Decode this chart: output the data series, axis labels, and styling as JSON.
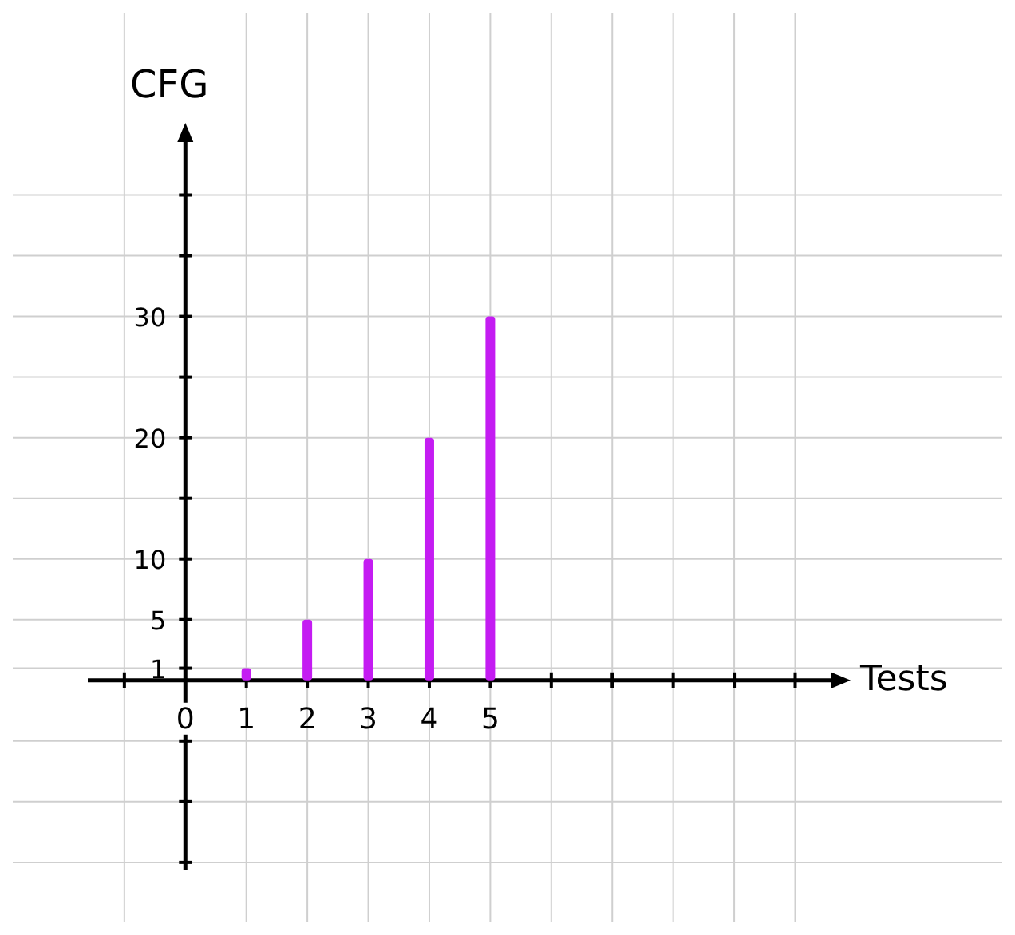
{
  "chart_data": {
    "type": "bar",
    "xlabel": "Tests",
    "ylabel": "CFG",
    "x": [
      1,
      2,
      3,
      4,
      5
    ],
    "values": [
      1,
      5,
      10,
      20,
      30
    ],
    "color": "#c41cf2",
    "xlim": [
      -1.6,
      10.7
    ],
    "ylim": [
      -15.6,
      44.9
    ],
    "xticks": [
      {
        "value": -1,
        "label": null
      },
      {
        "value": 0,
        "label": "0"
      },
      1,
      2,
      3,
      4,
      5,
      {
        "value": 6,
        "label": null
      },
      {
        "value": 7,
        "label": null
      },
      {
        "value": 8,
        "label": null
      },
      {
        "value": 9,
        "label": null
      },
      {
        "value": 10,
        "label": null
      }
    ],
    "yticks": [
      {
        "value": -15,
        "label": null
      },
      {
        "value": -10,
        "label": null
      },
      {
        "value": -5,
        "label": null
      },
      1,
      5,
      10,
      {
        "value": 15,
        "label": null
      },
      20,
      {
        "value": 25,
        "label": null
      },
      30,
      {
        "value": 35,
        "label": null
      },
      {
        "value": 40,
        "label": null
      }
    ],
    "grid": true
  }
}
